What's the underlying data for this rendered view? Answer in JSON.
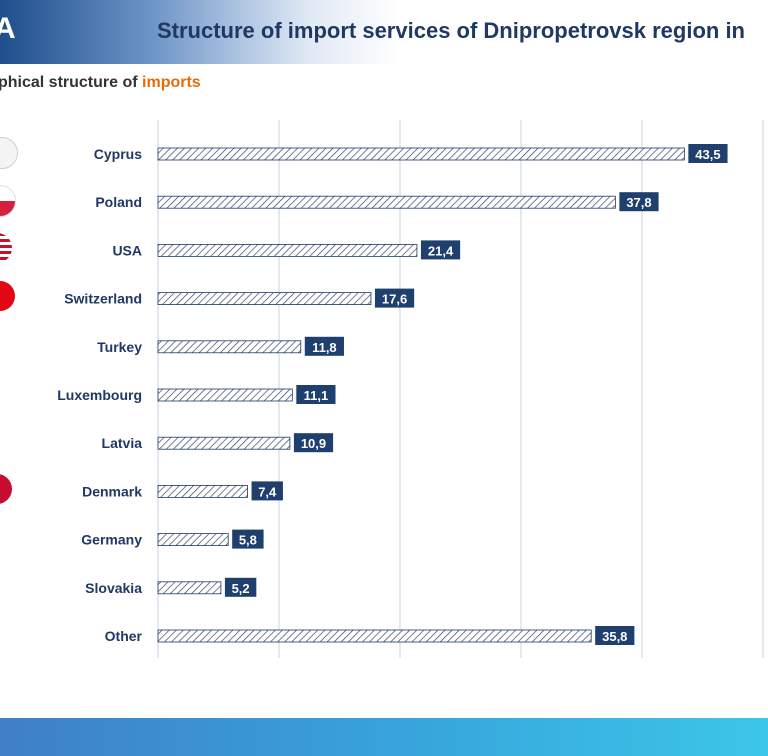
{
  "header": {
    "logo_text": "A",
    "title": "Structure of import services of Dnipropetrovsk region in"
  },
  "subtitle": {
    "prefix": "phical  structure  of ",
    "accent": "imports"
  },
  "colors": {
    "label_box": "#1f3f6e",
    "bar_hatch": "#1f3864",
    "grid": "#c9d3e0",
    "accent": "#e46c0a",
    "title": "#1f3864"
  },
  "flags": [
    {
      "country": "Cyprus",
      "icon": "cyprus-flag-icon",
      "color": "#eeeeee"
    },
    {
      "country": "Poland",
      "icon": "poland-flag-icon",
      "color": "#d4213d"
    },
    {
      "country": "USA",
      "icon": "usa-flag-icon",
      "color": "#c8102e"
    },
    {
      "country": "Switzerland",
      "icon": "switzerland-flag-icon",
      "color": "#e30613"
    },
    {
      "country": "Denmark",
      "icon": "denmark-flag-icon",
      "color": "#c60c30"
    }
  ],
  "chart_data": {
    "type": "bar",
    "orientation": "horizontal",
    "categories": [
      "Cyprus",
      "Poland",
      "USA",
      "Switzerland",
      "Turkey",
      "Luxembourg",
      "Latvia",
      "Denmark",
      "Germany",
      "Slovakia",
      "Other"
    ],
    "values": [
      43.5,
      37.8,
      21.4,
      17.6,
      11.8,
      11.1,
      10.9,
      7.4,
      5.8,
      5.2,
      35.8
    ],
    "data_labels": [
      "43,5",
      "37,8",
      "21,4",
      "17,6",
      "11,8",
      "11,1",
      "10,9",
      "7,4",
      "5,8",
      "5,2",
      "35,8"
    ],
    "xlim": [
      0,
      50
    ],
    "grid_step": 10,
    "grid": true,
    "legend": "none"
  }
}
